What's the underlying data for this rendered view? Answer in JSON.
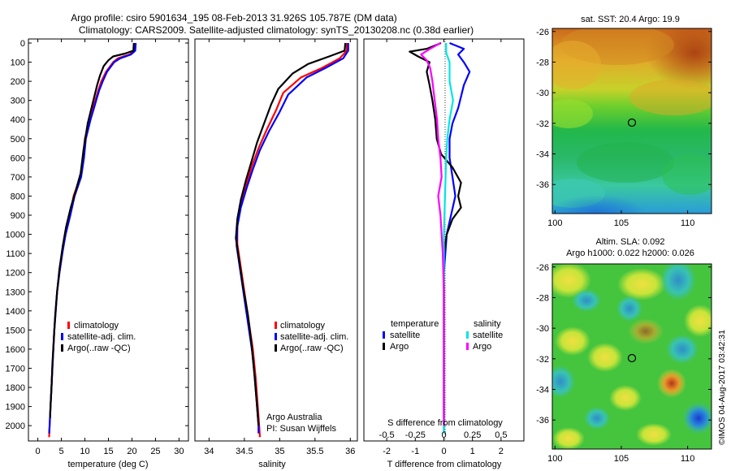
{
  "header": {
    "title_line1": "Argo profile: csiro 5901634_195 08-Feb-2013 31.926S 105.787E (DM data)",
    "title_line2": "Climatology: CARS2009. Satellite-adjusted climatology: synTS_20130208.nc (0.38d earlier)"
  },
  "panel_temp": {
    "xlabel": "temperature (deg C)",
    "xticks": [
      "0",
      "5",
      "10",
      "15",
      "20",
      "25",
      "30"
    ],
    "legend": [
      "climatology",
      "satellite-adj. clim.",
      "Argo(..raw -QC)"
    ]
  },
  "panel_sal": {
    "xlabel": "salinity",
    "xticks": [
      "34",
      "34.5",
      "35",
      "35.5",
      "36"
    ],
    "legend": [
      "climatology",
      "satellite-adj. clim.",
      "Argo(..raw -QC)"
    ],
    "note_line1": "Argo Australia",
    "note_line2": "PI: Susan Wijffels"
  },
  "panel_diff": {
    "xlabel": "T difference from climatology",
    "xticks": [
      "-2",
      "-1",
      "0",
      "1",
      "2"
    ],
    "top_label": "S difference from climatology",
    "top_ticks": [
      "-0.5",
      "-0.25",
      "0",
      "0.25",
      "0.5"
    ],
    "legend_temp_title": "temperature",
    "legend_sal_title": "salinity",
    "legend_temp_items": [
      "satellite",
      "Argo"
    ],
    "legend_sal_items": [
      "satellite",
      "Argo"
    ]
  },
  "depth_ticks": [
    "0",
    "100",
    "200",
    "300",
    "400",
    "500",
    "600",
    "700",
    "800",
    "900",
    "1000",
    "1100",
    "1200",
    "1300",
    "1400",
    "1500",
    "1600",
    "1700",
    "1800",
    "1900",
    "2000"
  ],
  "map_sst": {
    "title": "sat. SST: 20.4  Argo: 19.9",
    "xticks": [
      "100",
      "105",
      "110"
    ],
    "yticks": [
      "-26",
      "-28",
      "-30",
      "-32",
      "-34",
      "-36"
    ]
  },
  "map_sla": {
    "title_line1": "Altim. SLA: 0.092",
    "title_line2": "Argo h1000: 0.022 h2000: 0.026",
    "xticks": [
      "100",
      "105",
      "110"
    ],
    "yticks": [
      "-26",
      "-28",
      "-30",
      "-32",
      "-34",
      "-36"
    ]
  },
  "credit": "©IMOS 04-Aug-2017 03:42:31",
  "colors": {
    "climatology": "#ff0000",
    "satellite": "#0000ff",
    "argo": "#000000",
    "sal_satellite": "#00e5e5",
    "sal_argo": "#ff00ff"
  },
  "chart_data": [
    {
      "type": "line",
      "title": "",
      "xlabel": "temperature (deg C)",
      "ylabel": "",
      "xlim": [
        -2,
        32
      ],
      "ylim": [
        2080,
        0
      ],
      "y_axis": "depth (dbar), increasing downward",
      "series": [
        {
          "name": "climatology",
          "color": "#ff0000",
          "points": [
            [
              20.5,
              0
            ],
            [
              20.5,
              40
            ],
            [
              19.5,
              60
            ],
            [
              17,
              80
            ],
            [
              16,
              100
            ],
            [
              14.5,
              150
            ],
            [
              13.5,
              200
            ],
            [
              12.8,
              250
            ],
            [
              12.2,
              300
            ],
            [
              11.6,
              350
            ],
            [
              11,
              400
            ],
            [
              10.5,
              450
            ],
            [
              10,
              500
            ],
            [
              9.6,
              600
            ],
            [
              9,
              700
            ],
            [
              7.6,
              800
            ],
            [
              6.8,
              900
            ],
            [
              5.8,
              1000
            ],
            [
              5.2,
              1100
            ],
            [
              4.6,
              1200
            ],
            [
              4.1,
              1300
            ],
            [
              3.8,
              1400
            ],
            [
              3.5,
              1500
            ],
            [
              3.3,
              1600
            ],
            [
              3.1,
              1700
            ],
            [
              2.9,
              1800
            ],
            [
              2.7,
              1900
            ],
            [
              2.5,
              2000
            ],
            [
              2.4,
              2060
            ]
          ]
        },
        {
          "name": "satellite-adj. clim.",
          "color": "#0000ff",
          "points": [
            [
              20.8,
              0
            ],
            [
              20.7,
              40
            ],
            [
              19.8,
              60
            ],
            [
              17.5,
              80
            ],
            [
              16.2,
              100
            ],
            [
              14.7,
              150
            ],
            [
              13.8,
              200
            ],
            [
              13,
              250
            ],
            [
              12.4,
              300
            ],
            [
              11.8,
              350
            ],
            [
              11.2,
              400
            ],
            [
              10.7,
              450
            ],
            [
              10.2,
              500
            ],
            [
              9.8,
              600
            ],
            [
              9.2,
              700
            ],
            [
              7.8,
              800
            ],
            [
              6.9,
              900
            ],
            [
              5.9,
              1000
            ],
            [
              5.2,
              1100
            ],
            [
              4.6,
              1200
            ],
            [
              4.1,
              1300
            ],
            [
              3.8,
              1400
            ],
            [
              3.5,
              1500
            ],
            [
              3.3,
              1600
            ],
            [
              3.1,
              1700
            ],
            [
              2.9,
              1800
            ],
            [
              2.7,
              1900
            ],
            [
              2.5,
              2000
            ],
            [
              2.4,
              2040
            ]
          ]
        },
        {
          "name": "Argo(..raw -QC)",
          "color": "#000000",
          "points": [
            [
              20.4,
              0
            ],
            [
              20.3,
              40
            ],
            [
              18.5,
              55
            ],
            [
              16,
              70
            ],
            [
              15,
              90
            ],
            [
              14,
              120
            ],
            [
              13.2,
              170
            ],
            [
              12.6,
              220
            ],
            [
              12,
              280
            ],
            [
              11.5,
              330
            ],
            [
              11,
              380
            ],
            [
              10.6,
              420
            ],
            [
              10.2,
              480
            ],
            [
              9.7,
              560
            ],
            [
              9.1,
              680
            ],
            [
              8.2,
              760
            ],
            [
              7,
              860
            ],
            [
              6,
              960
            ],
            [
              5.3,
              1060
            ],
            [
              4.6,
              1180
            ],
            [
              4.1,
              1300
            ],
            [
              3.7,
              1420
            ],
            [
              3.4,
              1540
            ],
            [
              3.1,
              1680
            ],
            [
              2.9,
              1800
            ],
            [
              2.7,
              1900
            ],
            [
              2.6,
              1960
            ]
          ]
        }
      ]
    },
    {
      "type": "line",
      "title": "",
      "xlabel": "salinity",
      "ylabel": "",
      "xlim": [
        33.8,
        36.1
      ],
      "ylim": [
        2080,
        0
      ],
      "series": [
        {
          "name": "climatology",
          "color": "#ff0000",
          "points": [
            [
              35.95,
              0
            ],
            [
              35.95,
              40
            ],
            [
              35.85,
              80
            ],
            [
              35.6,
              130
            ],
            [
              35.3,
              180
            ],
            [
              35.05,
              260
            ],
            [
              34.95,
              350
            ],
            [
              34.82,
              450
            ],
            [
              34.7,
              550
            ],
            [
              34.6,
              650
            ],
            [
              34.52,
              750
            ],
            [
              34.45,
              850
            ],
            [
              34.4,
              950
            ],
            [
              34.4,
              1050
            ],
            [
              34.44,
              1150
            ],
            [
              34.5,
              1300
            ],
            [
              34.56,
              1450
            ],
            [
              34.62,
              1600
            ],
            [
              34.66,
              1750
            ],
            [
              34.69,
              1900
            ],
            [
              34.71,
              2000
            ],
            [
              34.72,
              2060
            ]
          ]
        },
        {
          "name": "satellite-adj. clim.",
          "color": "#0000ff",
          "points": [
            [
              35.97,
              0
            ],
            [
              35.97,
              40
            ],
            [
              35.9,
              80
            ],
            [
              35.65,
              130
            ],
            [
              35.38,
              180
            ],
            [
              35.12,
              270
            ],
            [
              35,
              360
            ],
            [
              34.85,
              460
            ],
            [
              34.72,
              560
            ],
            [
              34.62,
              660
            ],
            [
              34.53,
              760
            ],
            [
              34.45,
              860
            ],
            [
              34.4,
              960
            ],
            [
              34.39,
              1060
            ],
            [
              34.43,
              1160
            ],
            [
              34.49,
              1310
            ],
            [
              34.55,
              1460
            ],
            [
              34.61,
              1610
            ],
            [
              34.65,
              1760
            ],
            [
              34.68,
              1900
            ],
            [
              34.7,
              2000
            ],
            [
              34.7,
              2040
            ]
          ]
        },
        {
          "name": "Argo(..raw -QC)",
          "color": "#000000",
          "points": [
            [
              35.93,
              0
            ],
            [
              35.92,
              40
            ],
            [
              35.7,
              70
            ],
            [
              35.4,
              110
            ],
            [
              35.18,
              160
            ],
            [
              34.98,
              240
            ],
            [
              34.88,
              320
            ],
            [
              34.78,
              420
            ],
            [
              34.68,
              520
            ],
            [
              34.6,
              620
            ],
            [
              34.52,
              720
            ],
            [
              34.45,
              820
            ],
            [
              34.4,
              920
            ],
            [
              34.38,
              1020
            ],
            [
              34.42,
              1120
            ],
            [
              34.48,
              1270
            ],
            [
              34.55,
              1420
            ],
            [
              34.6,
              1570
            ],
            [
              34.64,
              1720
            ],
            [
              34.67,
              1860
            ],
            [
              34.69,
              1950
            ],
            [
              34.7,
              2000
            ]
          ]
        }
      ]
    },
    {
      "type": "line",
      "title": "",
      "xlabel": "T difference from climatology",
      "ylabel": "",
      "xlim": [
        -2.8,
        2.8
      ],
      "ylim": [
        2080,
        0
      ],
      "series": [
        {
          "name": "temperature satellite",
          "color": "#0000ff",
          "points": [
            [
              0.2,
              0
            ],
            [
              0.7,
              30
            ],
            [
              0.5,
              60
            ],
            [
              0.7,
              100
            ],
            [
              0.9,
              150
            ],
            [
              0.7,
              220
            ],
            [
              0.6,
              280
            ],
            [
              0.5,
              340
            ],
            [
              0.3,
              420
            ],
            [
              0.2,
              500
            ],
            [
              0.2,
              600
            ],
            [
              0.3,
              700
            ],
            [
              0.4,
              800
            ],
            [
              0.25,
              900
            ],
            [
              0.1,
              1000
            ],
            [
              0.05,
              1100
            ],
            [
              0,
              1200
            ],
            [
              0,
              1400
            ],
            [
              0,
              1600
            ],
            [
              0,
              1800
            ],
            [
              0,
              2000
            ],
            [
              0,
              2040
            ]
          ]
        },
        {
          "name": "temperature Argo",
          "color": "#000000",
          "points": [
            [
              -0.1,
              0
            ],
            [
              -0.6,
              30
            ],
            [
              -1.2,
              45
            ],
            [
              -0.9,
              70
            ],
            [
              -0.5,
              100
            ],
            [
              -0.6,
              150
            ],
            [
              -0.5,
              220
            ],
            [
              -0.4,
              300
            ],
            [
              -0.3,
              400
            ],
            [
              -0.25,
              500
            ],
            [
              -0.1,
              580
            ],
            [
              0.3,
              650
            ],
            [
              0.6,
              730
            ],
            [
              0.5,
              800
            ],
            [
              0.6,
              860
            ],
            [
              0.3,
              920
            ],
            [
              0.1,
              1000
            ],
            [
              0,
              1100
            ],
            [
              0,
              1300
            ],
            [
              0,
              1500
            ],
            [
              0,
              1700
            ],
            [
              0,
              1900
            ],
            [
              0,
              1960
            ]
          ]
        }
      ]
    },
    {
      "type": "line",
      "title": "S difference from climatology",
      "xlabel": "",
      "ylabel": "",
      "xlim": [
        -0.7,
        0.7
      ],
      "ylim": [
        2080,
        0
      ],
      "series": [
        {
          "name": "salinity satellite",
          "color": "#00e5e5",
          "points": [
            [
              0.02,
              0
            ],
            [
              0.02,
              50
            ],
            [
              0.05,
              100
            ],
            [
              0.05,
              200
            ],
            [
              0.08,
              300
            ],
            [
              0.05,
              400
            ],
            [
              0.03,
              500
            ],
            [
              0.02,
              600
            ],
            [
              0.01,
              800
            ],
            [
              0,
              1000
            ],
            [
              0,
              1300
            ],
            [
              0,
              1600
            ],
            [
              0,
              1900
            ],
            [
              0,
              2040
            ]
          ]
        },
        {
          "name": "salinity Argo",
          "color": "#ff00ff",
          "points": [
            [
              -0.03,
              0
            ],
            [
              -0.12,
              30
            ],
            [
              -0.2,
              60
            ],
            [
              -0.15,
              90
            ],
            [
              -0.12,
              130
            ],
            [
              -0.1,
              200
            ],
            [
              -0.08,
              300
            ],
            [
              -0.06,
              400
            ],
            [
              -0.05,
              500
            ],
            [
              -0.03,
              600
            ],
            [
              -0.02,
              700
            ],
            [
              -0.05,
              800
            ],
            [
              -0.03,
              900
            ],
            [
              -0.02,
              1000
            ],
            [
              -0.01,
              1100
            ],
            [
              0,
              1300
            ],
            [
              0,
              1600
            ],
            [
              0,
              1900
            ],
            [
              0,
              2000
            ]
          ]
        }
      ]
    }
  ]
}
